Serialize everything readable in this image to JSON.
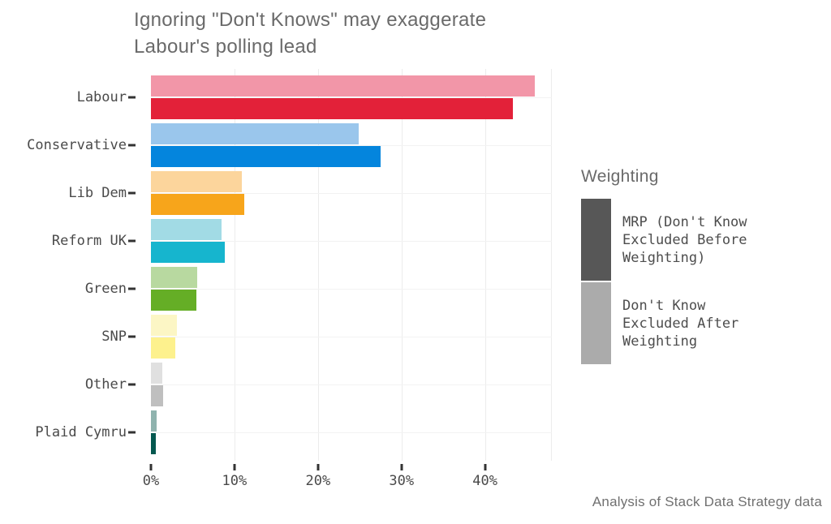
{
  "chart_data": {
    "type": "bar",
    "orientation": "horizontal",
    "title": "Ignoring \"Don't Knows\" may exaggerate\nLabour's polling lead",
    "caption": "Analysis of Stack Data Strategy data",
    "categories": [
      "Labour",
      "Conservative",
      "Lib Dem",
      "Reform UK",
      "Green",
      "SNP",
      "Other",
      "Plaid Cymru"
    ],
    "series": [
      {
        "name": "Don't Know Excluded After Weighting",
        "bar_position": "top",
        "values": [
          46.0,
          24.9,
          10.9,
          8.5,
          5.5,
          3.1,
          1.4,
          0.7
        ],
        "colors": [
          "#F296A8",
          "#9AC6EC",
          "#FCD59C",
          "#A2DBE5",
          "#B8D9A0",
          "#FCF6C5",
          "#E0E0E0",
          "#8FB3AE"
        ]
      },
      {
        "name": "MRP (Don't Know Excluded Before Weighting)",
        "bar_position": "bottom",
        "values": [
          43.3,
          27.5,
          11.2,
          8.8,
          5.4,
          2.9,
          1.5,
          0.6
        ],
        "colors": [
          "#E32139",
          "#0485DD",
          "#F7A51B",
          "#16B5CE",
          "#65AE26",
          "#FDF18D",
          "#BFBFBF",
          "#04584F"
        ]
      }
    ],
    "xlabel": "",
    "ylabel": "",
    "xlim": [
      0,
      48
    ],
    "xticks": [
      {
        "value": 0,
        "label": "0%"
      },
      {
        "value": 10,
        "label": "10%"
      },
      {
        "value": 20,
        "label": "20%"
      },
      {
        "value": 30,
        "label": "30%"
      },
      {
        "value": 40,
        "label": "40%"
      }
    ],
    "grid": true,
    "legend": {
      "title": "Weighting",
      "position": "right",
      "entries": [
        {
          "label": "MRP (Don't Know\nExcluded Before\nWeighting)",
          "swatch": "#575757"
        },
        {
          "label": "Don't Know\nExcluded After\nWeighting",
          "swatch": "#ABABAB"
        }
      ]
    },
    "colors_note": {
      "title_text": "#6a6a6a",
      "axis_text": "#4a4a4a",
      "tick_mark": "#333333",
      "gridline": "#ececec",
      "background": "#ffffff"
    }
  }
}
